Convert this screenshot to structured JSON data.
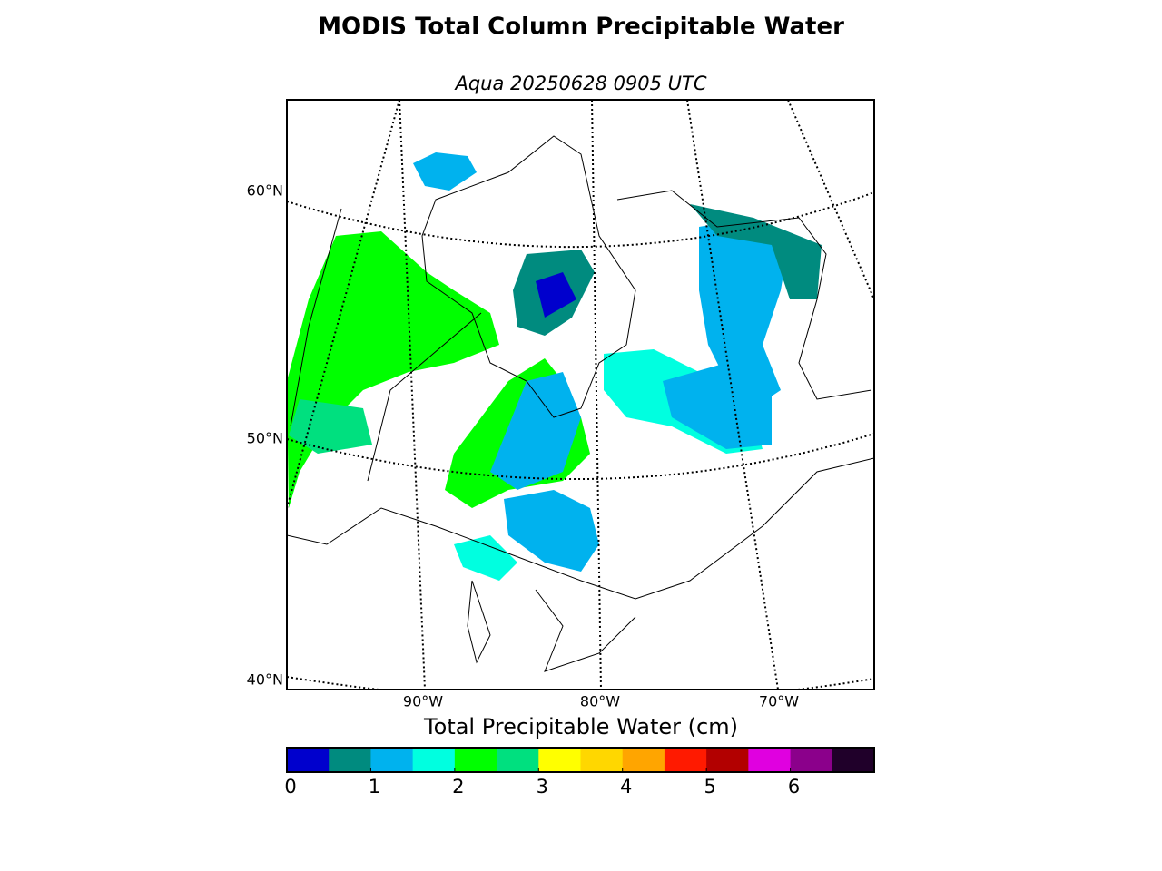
{
  "title": "MODIS Total Column Precipitable Water",
  "subtitle": "Aqua 20250628 0905 UTC",
  "map": {
    "lat_labels": [
      "60°N",
      "50°N",
      "40°N"
    ],
    "lon_labels": [
      "90°W",
      "80°W",
      "70°W"
    ]
  },
  "colorbar": {
    "label": "Total Precipitable Water (cm)",
    "range": [
      0,
      7
    ],
    "ticks": [
      0,
      1,
      2,
      3,
      4,
      5,
      6
    ],
    "colors": [
      "#0000cd",
      "#008b7f",
      "#00b2ee",
      "#00ffe0",
      "#00ff00",
      "#00e07f",
      "#ffff00",
      "#ffd700",
      "#ffa500",
      "#ff1a00",
      "#b20000",
      "#e000e0",
      "#8b008b",
      "#20002a"
    ]
  }
}
